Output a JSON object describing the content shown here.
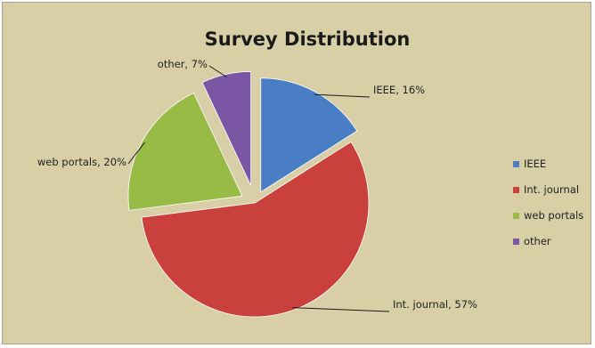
{
  "chart_data": {
    "type": "pie",
    "title": "Survey Distribution",
    "exploded": true,
    "legend_position": "right",
    "slices": [
      {
        "name": "IEEE",
        "value": 16,
        "label": "IEEE, 16%",
        "color": "#4a7ec4"
      },
      {
        "name": "Int. journal",
        "value": 57,
        "label": "Int. journal, 57%",
        "color": "#c9403c"
      },
      {
        "name": "web portals",
        "value": 20,
        "label": "web portals, 20%",
        "color": "#98bb45"
      },
      {
        "name": "other",
        "value": 7,
        "label": "other, 7%",
        "color": "#7a56a5"
      }
    ]
  }
}
